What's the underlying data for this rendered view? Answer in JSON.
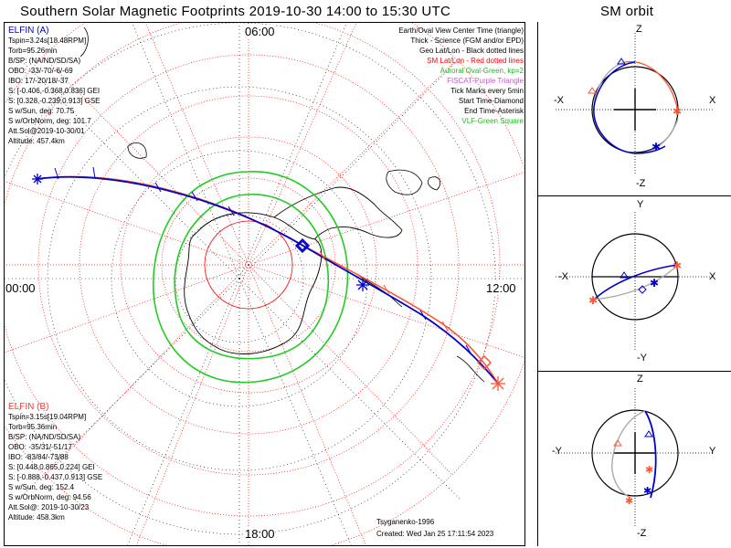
{
  "title": "Southern Solar Magnetic Footprints 2019-10-30 14:00 to 15:30 UTC",
  "orbit_title": "SM orbit",
  "main_plot": {
    "tick_top": "06:00",
    "tick_left": "00:00",
    "tick_right": "12:00",
    "tick_bottom": "18:00"
  },
  "elfin_a": {
    "name": "ELFIN (A)",
    "color": "#0000cc",
    "lines": [
      "Tspin=3.24s[18.48RPM]",
      "Torb=95.26min",
      "B/SP: (NA/ND/SD/SA)",
      "OBO: -33/-70/-6/-69",
      "IBO: 17/-20/18/-37",
      "S: [-0.406,-0.368,0.836] GEI",
      "S: [0.328,-0.239,0.913] GSE",
      "S w/Sun, deg: 70.75",
      "S w/OrbNorm, deg: 101.7",
      "Att.Sol@2019-10-30/01",
      "Altitude: 457.4km"
    ]
  },
  "elfin_b": {
    "name": "ELFIN (B)",
    "color": "#ff3b2f",
    "lines": [
      "Tspin=3.15s[19.04RPM]",
      "Torb=95.36min",
      "B/SP: (NA/ND/SD/SA)",
      "OBO: -35/31/-51/17",
      "IBO: -83/84/-73/88",
      "S: [0.448,0.865,0.224] GEI",
      "S: [-0.888,-0.437,0.913] GSE",
      "S w/Sun, deg: 152.4",
      "S w/OrbNorm, deg: 94.56",
      "Att.Sol@: 2019-10-30/23",
      "Altitude: 458.3km"
    ]
  },
  "legend": [
    {
      "text": "Earth/Oval View Center Time (triangle)",
      "color": "#000000"
    },
    {
      "text": "Thick - Science (FGM and/or EPD)",
      "color": "#000000"
    },
    {
      "text": "Geo Lat/Lon - Black dotted lines",
      "color": "#000000"
    },
    {
      "text": "SM Lat/Lon - Red dotted lines",
      "color": "#ff0000"
    },
    {
      "text": "Auroral Oval-Green, kp=2",
      "color": "#22bb22"
    },
    {
      "text": "FISCAT-Purple Triangle",
      "color": "#cc55cc"
    },
    {
      "text": "Tick Marks every 5min",
      "color": "#000000"
    },
    {
      "text": "Start Time-Diamond",
      "color": "#000000"
    },
    {
      "text": "End Time-Asterisk",
      "color": "#000000"
    },
    {
      "text": "VLF-Green Square",
      "color": "#22bb22"
    }
  ],
  "credits": {
    "author": "Tsyganenko-1996",
    "created": "Created: Wed Jan 25 17:11:54 2023"
  },
  "orbit_panels": [
    {
      "top": "Z",
      "bottom": "-Z",
      "left": "-X",
      "right": "X"
    },
    {
      "top": "Y",
      "bottom": "-Y",
      "left": "-X",
      "right": "X"
    },
    {
      "top": "Z",
      "bottom": "-Z",
      "left": "-Y",
      "right": "Y"
    }
  ],
  "colors": {
    "elfin_a": "#0000cc",
    "elfin_b": "#ff5533",
    "oval": "#22cc22",
    "sm_grid": "#ff0000",
    "geo_grid": "#000000"
  }
}
